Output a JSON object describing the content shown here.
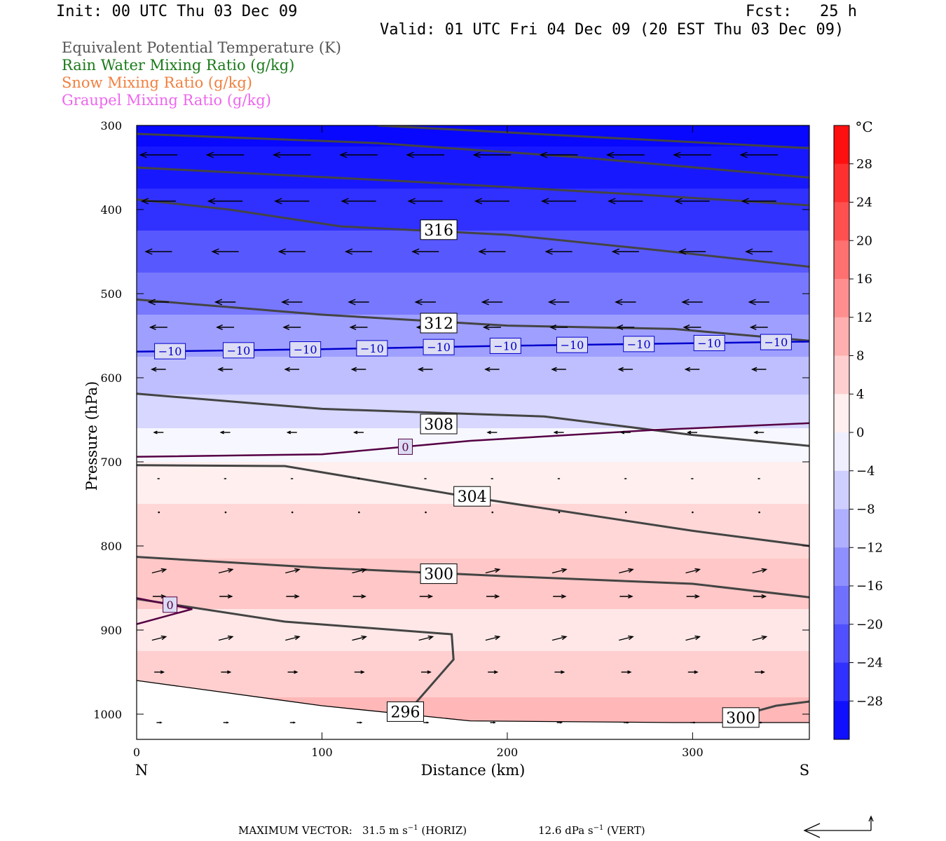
{
  "header": {
    "init": "Init: 00 UTC Thu 03 Dec 09",
    "fcst": "Fcst:   25 h",
    "valid": "Valid: 01 UTC Fri 04 Dec 09 (20 EST Thu 03 Dec 09)"
  },
  "legend_fields": [
    {
      "label": "Equivalent Potential Temperature (K)",
      "color": "#555555"
    },
    {
      "label": "Rain Water Mixing Ratio (g/kg)",
      "color": "#1a7a1a"
    },
    {
      "label": "Snow Mixing Ratio (g/kg)",
      "color": "#f08040"
    },
    {
      "label": "Graupel Mixing Ratio (g/kg)",
      "color": "#ee66ee"
    }
  ],
  "chart_data": {
    "type": "heatmap",
    "xlabel": "Distance (km)",
    "ylabel": "Pressure (hPa)",
    "xlim": [
      0,
      363
    ],
    "ylim": [
      1030,
      300
    ],
    "x_ticks": [
      "0",
      "100",
      "200",
      "300"
    ],
    "y_ticks": [
      "300",
      "400",
      "500",
      "600",
      "700",
      "800",
      "900",
      "1000"
    ],
    "left_end_label": "N",
    "right_end_label": "S",
    "colorbar": {
      "unit": "°C",
      "tick_labels": [
        "28",
        "24",
        "20",
        "16",
        "12",
        "8",
        "4",
        "0",
        "−4",
        "−8",
        "−12",
        "−16",
        "−20",
        "−24",
        "−28"
      ],
      "range": [
        -32,
        32
      ],
      "cold_color": "#0000ff",
      "neutral_color": "#ffffff",
      "warm_color": "#ff0000"
    },
    "temperature_field": [
      {
        "p": 300,
        "t": -31
      },
      {
        "p": 350,
        "t": -29
      },
      {
        "p": 400,
        "t": -26
      },
      {
        "p": 450,
        "t": -21
      },
      {
        "p": 500,
        "t": -17
      },
      {
        "p": 550,
        "t": -12
      },
      {
        "p": 600,
        "t": -8
      },
      {
        "p": 640,
        "t": -5
      },
      {
        "p": 680,
        "t": -1
      },
      {
        "p": 720,
        "t": 2
      },
      {
        "p": 780,
        "t": 5
      },
      {
        "p": 850,
        "t": 7
      },
      {
        "p": 900,
        "t": 3
      },
      {
        "p": 950,
        "t": 6
      },
      {
        "p": 1010,
        "t": 9
      }
    ],
    "theta_e_contours": [
      {
        "label": "316",
        "label_at": [
          163,
          424
        ],
        "points": [
          [
            0,
            388
          ],
          [
            50,
            400
          ],
          [
            110,
            420
          ],
          [
            200,
            430
          ],
          [
            280,
            448
          ],
          [
            363,
            468
          ]
        ]
      },
      {
        "label": "312",
        "label_at": [
          163,
          535
        ],
        "points": [
          [
            0,
            507
          ],
          [
            100,
            525
          ],
          [
            200,
            538
          ],
          [
            290,
            542
          ],
          [
            363,
            556
          ]
        ]
      },
      {
        "label": "308",
        "label_at": [
          163,
          655
        ],
        "points": [
          [
            0,
            619
          ],
          [
            100,
            637
          ],
          [
            220,
            646
          ],
          [
            300,
            668
          ],
          [
            363,
            681
          ]
        ]
      },
      {
        "label": "304",
        "label_at": [
          181,
          741
        ],
        "points": [
          [
            0,
            704
          ],
          [
            80,
            705
          ],
          [
            180,
            742
          ],
          [
            300,
            782
          ],
          [
            363,
            800
          ]
        ]
      },
      {
        "label": "300",
        "label_at": [
          163,
          833
        ],
        "points": [
          [
            0,
            813
          ],
          [
            100,
            826
          ],
          [
            200,
            836
          ],
          [
            300,
            845
          ],
          [
            363,
            861
          ]
        ]
      },
      {
        "label": "296",
        "label_at": [
          145,
          997
        ],
        "points": [
          [
            0,
            863
          ],
          [
            80,
            890
          ],
          [
            170,
            905
          ],
          [
            171,
            935
          ],
          [
            150,
            988
          ]
        ]
      },
      {
        "label": "300",
        "label_at": [
          326,
          1004
        ],
        "points": [
          [
            320,
            1005
          ],
          [
            345,
            990
          ],
          [
            363,
            985
          ]
        ]
      }
    ],
    "upper_theta_e_lines": [
      [
        [
          0,
          310
        ],
        [
          130,
          321
        ],
        [
          240,
          338
        ],
        [
          363,
          362
        ]
      ],
      [
        [
          130,
          300
        ],
        [
          240,
          313
        ],
        [
          363,
          327
        ]
      ],
      [
        [
          0,
          350
        ],
        [
          150,
          367
        ],
        [
          270,
          382
        ],
        [
          363,
          395
        ]
      ]
    ],
    "temperature_contours": [
      {
        "label": "−10",
        "color": "#0000cc",
        "label_positions": [
          18,
          55,
          91,
          127,
          163,
          199,
          235,
          271,
          309,
          345
        ],
        "points": [
          [
            0,
            569
          ],
          [
            100,
            566
          ],
          [
            200,
            562
          ],
          [
            300,
            559
          ],
          [
            363,
            557
          ]
        ]
      },
      {
        "label": "0",
        "color": "#550044",
        "label_positions": [
          145
        ],
        "points": [
          [
            0,
            694
          ],
          [
            100,
            691
          ],
          [
            180,
            675
          ],
          [
            280,
            662
          ],
          [
            363,
            654
          ]
        ]
      },
      {
        "label": "0",
        "color": "#550044",
        "label_positions": [
          18
        ],
        "points": [
          [
            0,
            862
          ],
          [
            30,
            875
          ],
          [
            0,
            893
          ]
        ]
      }
    ],
    "surface_line": [
      [
        0,
        960
      ],
      [
        100,
        990
      ],
      [
        180,
        1008
      ],
      [
        290,
        1010
      ],
      [
        363,
        1010
      ]
    ],
    "wind_vectors": [
      {
        "p": 335,
        "u": -24,
        "w": 0
      },
      {
        "p": 390,
        "u": -22,
        "w": 0
      },
      {
        "p": 450,
        "u": -17,
        "w": 0
      },
      {
        "p": 510,
        "u": -13,
        "w": 0
      },
      {
        "p": 540,
        "u": -11,
        "w": 0
      },
      {
        "p": 590,
        "u": -9,
        "w": 0
      },
      {
        "p": 665,
        "u": -6,
        "w": 0
      },
      {
        "p": 720,
        "u": -1,
        "w": 0
      },
      {
        "p": 760,
        "u": 0,
        "w": 0
      },
      {
        "p": 830,
        "u": 9,
        "w": -2
      },
      {
        "p": 860,
        "u": 8,
        "w": 0
      },
      {
        "p": 910,
        "u": 9,
        "w": -2
      },
      {
        "p": 950,
        "u": 6,
        "w": 0
      },
      {
        "p": 1010,
        "u": 3,
        "w": 0
      }
    ]
  },
  "footer": {
    "max_vector_label": "MAXIMUM VECTOR:",
    "horiz_value": "31.5 m s",
    "horiz_exp": "−1",
    "horiz_tag": "(HORIZ)",
    "vert_value": "12.6 dPa s",
    "vert_exp": "−1",
    "vert_tag": "(VERT)"
  }
}
